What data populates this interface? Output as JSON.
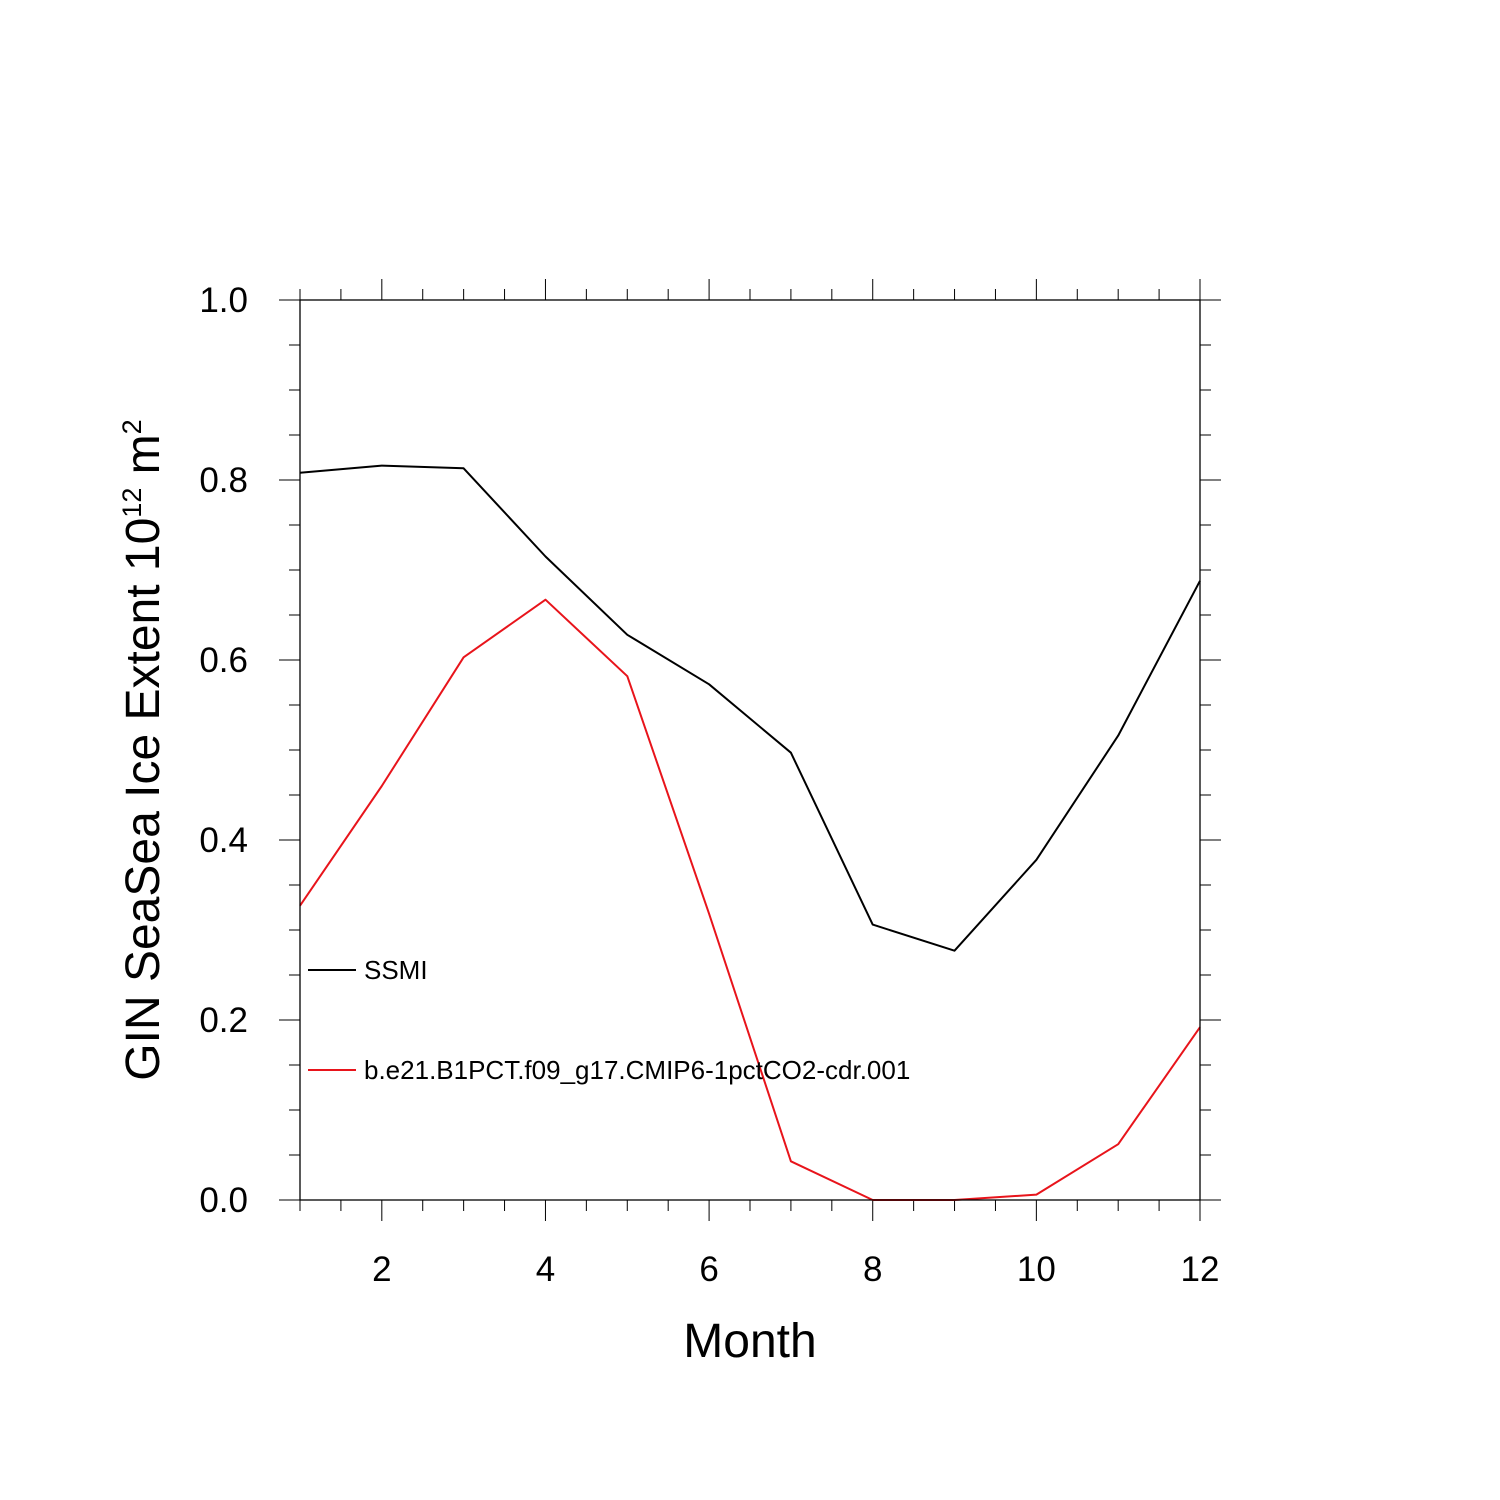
{
  "chart_data": {
    "type": "line",
    "xlabel": "Month",
    "ylabel": {
      "prefix": "GIN SeaSea Ice Extent 10",
      "exp": "12",
      "unit": " m",
      "unit_exp": "2"
    },
    "xlim": [
      1,
      12
    ],
    "ylim": [
      0,
      1
    ],
    "x_ticks": [
      2,
      4,
      6,
      8,
      10,
      12
    ],
    "y_ticks": [
      "0.0",
      "0.2",
      "0.4",
      "0.6",
      "0.8",
      "1.0"
    ],
    "x": [
      1,
      2,
      3,
      4,
      5,
      6,
      7,
      8,
      9,
      10,
      11,
      12
    ],
    "series": [
      {
        "name": "SSMI",
        "color": "#000000",
        "values": [
          0.808,
          0.816,
          0.813,
          0.715,
          0.628,
          0.573,
          0.497,
          0.306,
          0.277,
          0.378,
          0.516,
          0.688
        ]
      },
      {
        "name": "b.e21.B1PCT.f09_g17.CMIP6-1pctCO2-cdr.001",
        "color": "#e8141b",
        "values": [
          0.327,
          0.46,
          0.603,
          0.667,
          0.582,
          0.318,
          0.043,
          0.0,
          0.0,
          0.006,
          0.062,
          0.192
        ]
      }
    ],
    "legend_position": "lower-left inside",
    "grid": false
  }
}
